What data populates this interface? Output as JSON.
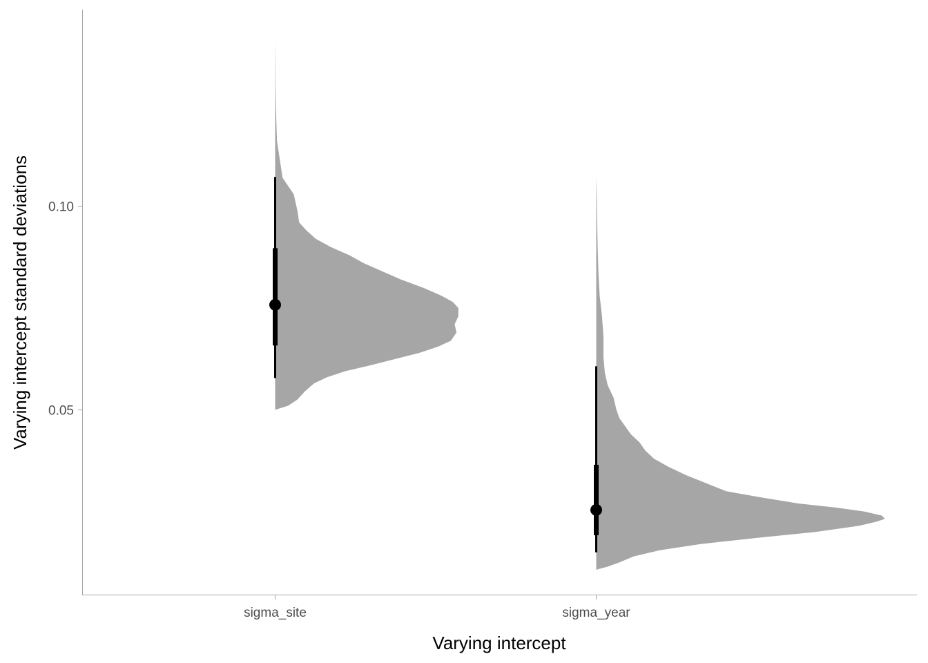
{
  "chart_data": {
    "type": "halfeye",
    "xlabel": "Varying intercept",
    "ylabel": "Varying intercept standard deviations",
    "categories": [
      "sigma_site",
      "sigma_year"
    ],
    "y_ticks": [
      0.05,
      0.1
    ],
    "y_tick_labels": [
      "0.05",
      "0.10"
    ],
    "ylim": [
      0.0046,
      0.1483
    ],
    "grid": false,
    "colors": {
      "density": "#a6a6a6",
      "interval": "#000000",
      "axis": "#a6a6a6"
    },
    "series": [
      {
        "name": "sigma_site",
        "median": 0.0758,
        "interval_66": [
          0.0658,
          0.0897
        ],
        "interval_95": [
          0.0578,
          0.1072
        ],
        "density_range": [
          0.05,
          0.1413
        ],
        "density": [
          [
            0.05,
            0.0
          ],
          [
            0.051,
            0.07
          ],
          [
            0.0525,
            0.12
          ],
          [
            0.0545,
            0.16
          ],
          [
            0.0565,
            0.21
          ],
          [
            0.058,
            0.28
          ],
          [
            0.0595,
            0.38
          ],
          [
            0.061,
            0.52
          ],
          [
            0.0625,
            0.65
          ],
          [
            0.064,
            0.78
          ],
          [
            0.0655,
            0.88
          ],
          [
            0.067,
            0.95
          ],
          [
            0.069,
            0.98
          ],
          [
            0.071,
            0.97
          ],
          [
            0.073,
            0.99
          ],
          [
            0.075,
            0.99
          ],
          [
            0.0765,
            0.96
          ],
          [
            0.078,
            0.9
          ],
          [
            0.08,
            0.8
          ],
          [
            0.082,
            0.68
          ],
          [
            0.084,
            0.58
          ],
          [
            0.086,
            0.48
          ],
          [
            0.088,
            0.4
          ],
          [
            0.09,
            0.3
          ],
          [
            0.092,
            0.22
          ],
          [
            0.094,
            0.17
          ],
          [
            0.096,
            0.13
          ],
          [
            0.099,
            0.12
          ],
          [
            0.101,
            0.11
          ],
          [
            0.103,
            0.1
          ],
          [
            0.105,
            0.07
          ],
          [
            0.107,
            0.04
          ],
          [
            0.11,
            0.03
          ],
          [
            0.113,
            0.02
          ],
          [
            0.116,
            0.01
          ],
          [
            0.12,
            0.007
          ],
          [
            0.125,
            0.004
          ],
          [
            0.13,
            0.002
          ],
          [
            0.135,
            0.0015
          ],
          [
            0.1413,
            0.0
          ]
        ]
      },
      {
        "name": "sigma_year",
        "median": 0.0254,
        "interval_66": [
          0.0192,
          0.0365
        ],
        "interval_95": [
          0.015,
          0.0607
        ],
        "density_range": [
          0.0107,
          0.1073
        ],
        "density": [
          [
            0.0107,
            0.0
          ],
          [
            0.0115,
            0.04
          ],
          [
            0.0125,
            0.08
          ],
          [
            0.014,
            0.13
          ],
          [
            0.0155,
            0.22
          ],
          [
            0.017,
            0.36
          ],
          [
            0.0185,
            0.55
          ],
          [
            0.02,
            0.76
          ],
          [
            0.0215,
            0.91
          ],
          [
            0.0225,
            0.97
          ],
          [
            0.0232,
            1.0
          ],
          [
            0.024,
            0.99
          ],
          [
            0.025,
            0.93
          ],
          [
            0.026,
            0.83
          ],
          [
            0.027,
            0.7
          ],
          [
            0.0285,
            0.57
          ],
          [
            0.03,
            0.45
          ],
          [
            0.032,
            0.38
          ],
          [
            0.034,
            0.31
          ],
          [
            0.036,
            0.25
          ],
          [
            0.038,
            0.2
          ],
          [
            0.04,
            0.17
          ],
          [
            0.042,
            0.15
          ],
          [
            0.044,
            0.12
          ],
          [
            0.046,
            0.1
          ],
          [
            0.048,
            0.08
          ],
          [
            0.05,
            0.07
          ],
          [
            0.053,
            0.06
          ],
          [
            0.056,
            0.04
          ],
          [
            0.059,
            0.03
          ],
          [
            0.063,
            0.025
          ],
          [
            0.068,
            0.025
          ],
          [
            0.073,
            0.02
          ],
          [
            0.078,
            0.012
          ],
          [
            0.083,
            0.008
          ],
          [
            0.09,
            0.005
          ],
          [
            0.097,
            0.003
          ],
          [
            0.102,
            0.002
          ],
          [
            0.1073,
            0.0
          ]
        ]
      }
    ]
  }
}
